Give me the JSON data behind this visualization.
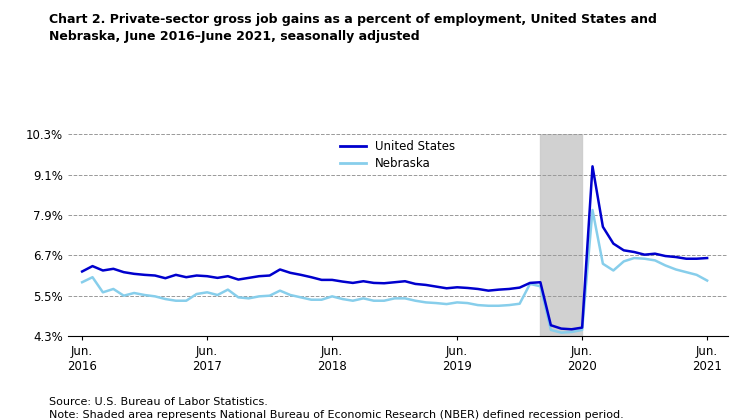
{
  "title": "Chart 2. Private-sector gross job gains as a percent of employment, United States and\nNebraska, June 2016–June 2021, seasonally adjusted",
  "source": "Source: U.S. Bureau of Labor Statistics.",
  "note": "Note: Shaded area represents National Bureau of Economic Research (NBER) defined recession period.",
  "us_color": "#0000CD",
  "ne_color": "#87CEEB",
  "recession_color": "#CCCCCC",
  "recession_alpha": 0.9,
  "recession_start": 2020.083,
  "recession_end": 2020.417,
  "ylim": [
    4.3,
    10.3
  ],
  "yticks": [
    4.3,
    5.5,
    6.7,
    7.9,
    9.1,
    10.3
  ],
  "ytick_labels": [
    "4.3%",
    "5.5%",
    "6.7%",
    "7.9%",
    "9.1%",
    "10.3%"
  ],
  "legend_labels": [
    "United States",
    "Nebraska"
  ],
  "us_data": {
    "dates": [
      2016.417,
      2016.5,
      2016.583,
      2016.667,
      2016.75,
      2016.833,
      2016.917,
      2017.0,
      2017.083,
      2017.167,
      2017.25,
      2017.333,
      2017.417,
      2017.5,
      2017.583,
      2017.667,
      2017.75,
      2017.833,
      2017.917,
      2018.0,
      2018.083,
      2018.167,
      2018.25,
      2018.333,
      2018.417,
      2018.5,
      2018.583,
      2018.667,
      2018.75,
      2018.833,
      2018.917,
      2019.0,
      2019.083,
      2019.167,
      2019.25,
      2019.333,
      2019.417,
      2019.5,
      2019.583,
      2019.667,
      2019.75,
      2019.833,
      2019.917,
      2020.0,
      2020.083,
      2020.167,
      2020.25,
      2020.333,
      2020.417,
      2020.5,
      2020.583,
      2020.667,
      2020.75,
      2020.833,
      2020.917,
      2021.0,
      2021.083,
      2021.167,
      2021.25,
      2021.333,
      2021.417
    ],
    "values": [
      6.22,
      6.38,
      6.25,
      6.3,
      6.2,
      6.15,
      6.12,
      6.1,
      6.02,
      6.12,
      6.05,
      6.1,
      6.08,
      6.03,
      6.08,
      5.98,
      6.03,
      6.08,
      6.1,
      6.28,
      6.18,
      6.12,
      6.05,
      5.97,
      5.97,
      5.92,
      5.88,
      5.93,
      5.88,
      5.87,
      5.9,
      5.93,
      5.85,
      5.82,
      5.77,
      5.72,
      5.75,
      5.73,
      5.7,
      5.65,
      5.68,
      5.7,
      5.74,
      5.88,
      5.9,
      4.62,
      4.52,
      4.5,
      4.55,
      9.35,
      7.55,
      7.05,
      6.85,
      6.8,
      6.72,
      6.75,
      6.68,
      6.65,
      6.6,
      6.6,
      6.62
    ]
  },
  "ne_data": {
    "dates": [
      2016.417,
      2016.5,
      2016.583,
      2016.667,
      2016.75,
      2016.833,
      2016.917,
      2017.0,
      2017.083,
      2017.167,
      2017.25,
      2017.333,
      2017.417,
      2017.5,
      2017.583,
      2017.667,
      2017.75,
      2017.833,
      2017.917,
      2018.0,
      2018.083,
      2018.167,
      2018.25,
      2018.333,
      2018.417,
      2018.5,
      2018.583,
      2018.667,
      2018.75,
      2018.833,
      2018.917,
      2019.0,
      2019.083,
      2019.167,
      2019.25,
      2019.333,
      2019.417,
      2019.5,
      2019.583,
      2019.667,
      2019.75,
      2019.833,
      2019.917,
      2020.0,
      2020.083,
      2020.167,
      2020.25,
      2020.333,
      2020.417,
      2020.5,
      2020.583,
      2020.667,
      2020.75,
      2020.833,
      2020.917,
      2021.0,
      2021.083,
      2021.167,
      2021.25,
      2021.333,
      2021.417
    ],
    "values": [
      5.9,
      6.05,
      5.6,
      5.7,
      5.5,
      5.58,
      5.52,
      5.48,
      5.4,
      5.35,
      5.35,
      5.55,
      5.6,
      5.52,
      5.68,
      5.45,
      5.42,
      5.48,
      5.5,
      5.65,
      5.52,
      5.45,
      5.38,
      5.38,
      5.48,
      5.4,
      5.35,
      5.42,
      5.35,
      5.35,
      5.42,
      5.42,
      5.35,
      5.3,
      5.28,
      5.25,
      5.3,
      5.28,
      5.22,
      5.2,
      5.2,
      5.22,
      5.26,
      5.85,
      5.78,
      4.48,
      4.4,
      4.42,
      4.48,
      8.05,
      6.45,
      6.25,
      6.52,
      6.62,
      6.6,
      6.55,
      6.4,
      6.28,
      6.2,
      6.12,
      5.95
    ]
  },
  "xlim": [
    2016.3,
    2021.58
  ],
  "xtick_positions": [
    2016.417,
    2017.417,
    2018.417,
    2019.417,
    2020.417,
    2021.417
  ],
  "xtick_labels": [
    "Jun.\n2016",
    "Jun.\n2017",
    "Jun.\n2018",
    "Jun.\n2019",
    "Jun.\n2020",
    "Jun.\n2021"
  ]
}
